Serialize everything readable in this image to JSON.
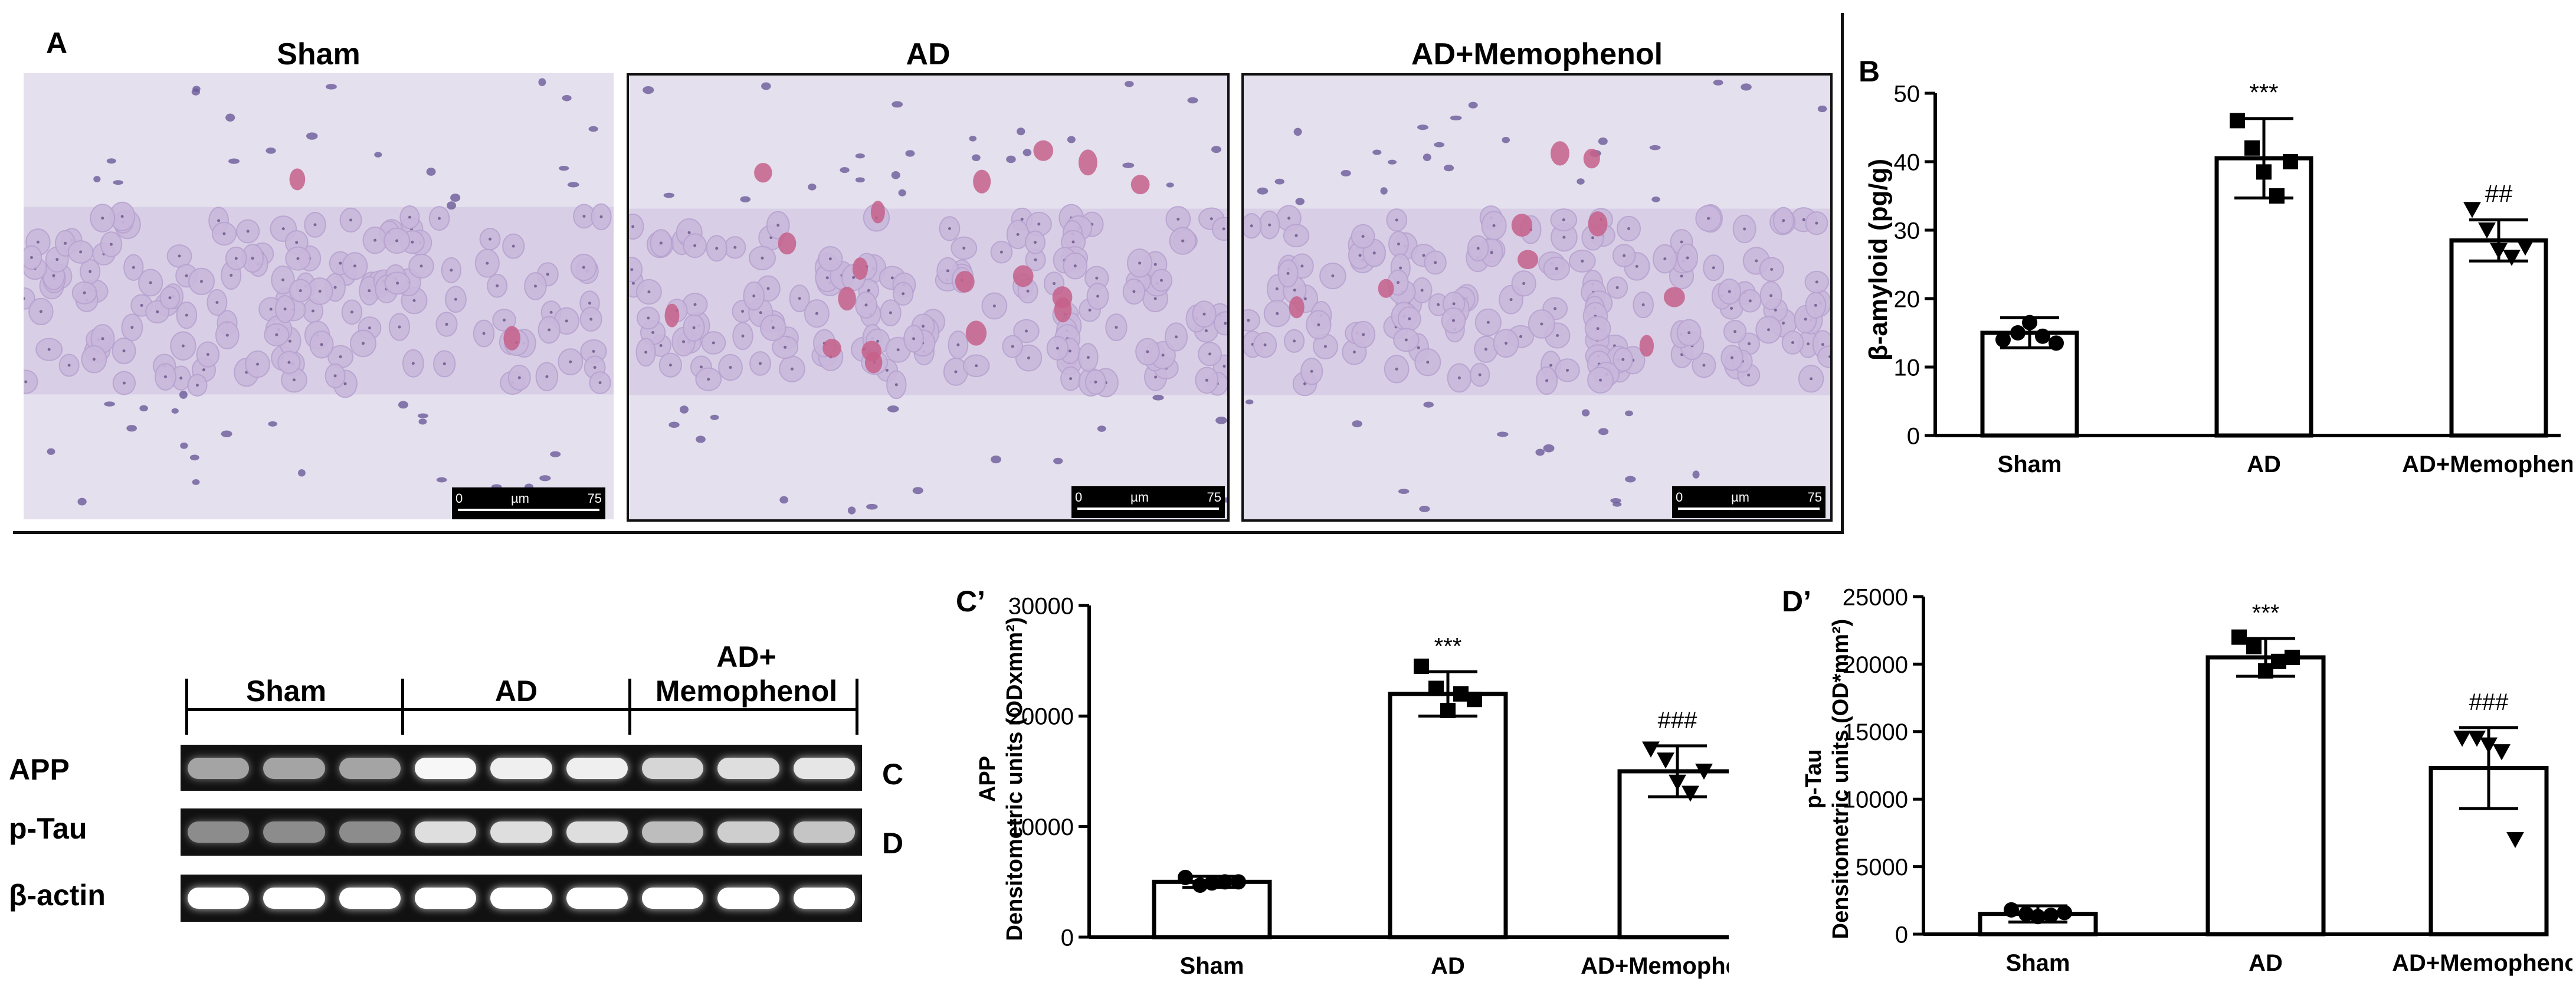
{
  "panel_letters": {
    "a": "A",
    "b": "B",
    "c_prime": "C’",
    "d_prime": "D’",
    "c": "C",
    "d": "D"
  },
  "micrographs": [
    {
      "title": "Sham",
      "scale": {
        "start": "0",
        "unit": "µm",
        "end": "75"
      }
    },
    {
      "title": "AD",
      "scale": {
        "start": "0",
        "unit": "µm",
        "end": "75"
      }
    },
    {
      "title": "AD+Memophenol",
      "scale": {
        "start": "0",
        "unit": "µm",
        "end": "75"
      }
    }
  ],
  "western_blot": {
    "groups": [
      "Sham",
      "AD",
      "AD+\nMemophenol"
    ],
    "group_line1": [
      "Sham",
      "AD",
      "AD+"
    ],
    "group_line2": [
      "",
      "",
      "Memophenol"
    ],
    "rows": [
      "APP",
      "p-Tau",
      "β-actin"
    ],
    "row_refs": [
      "C",
      "D",
      ""
    ]
  },
  "colors": {
    "bar_fill": "#ffffff",
    "bar_stroke": "#000000",
    "points": "#000000"
  },
  "chart_data": [
    {
      "id": "B",
      "type": "bar",
      "categories": [
        "Sham",
        "AD",
        "AD+Memophenol"
      ],
      "values": [
        15,
        40.5,
        28.5
      ],
      "errors": [
        2.2,
        5.8,
        3.0
      ],
      "points": [
        [
          14,
          15,
          16.5,
          14.5,
          13.5
        ],
        [
          46,
          42,
          38.5,
          35,
          40
        ],
        [
          33,
          30,
          27,
          26,
          27.5
        ]
      ],
      "markers": [
        "circle",
        "square",
        "triangle-down"
      ],
      "annotations": [
        "",
        "***",
        "##"
      ],
      "ylabel": "β-amyloid (pg/g)",
      "ylim": [
        0,
        50
      ],
      "yticks": [
        "0",
        "10",
        "20",
        "30",
        "40",
        "50"
      ]
    },
    {
      "id": "C",
      "type": "bar",
      "categories": [
        "Sham",
        "AD",
        "AD+Memophenol"
      ],
      "values": [
        5000,
        22000,
        15000
      ],
      "errors": [
        500,
        2000,
        2300
      ],
      "points": [
        [
          5400,
          4700,
          4900,
          5000,
          5000
        ],
        [
          24500,
          22500,
          20500,
          22000,
          21500
        ],
        [
          17000,
          16000,
          14000,
          13000,
          15000
        ]
      ],
      "markers": [
        "circle",
        "square",
        "triangle-down"
      ],
      "annotations": [
        "",
        "***",
        "###"
      ],
      "ylabel_line1": "APP",
      "ylabel_line2": "Densitometric units (ODxmm²)",
      "ylim": [
        0,
        30000
      ],
      "yticks": [
        "0",
        "10000",
        "20000",
        "30000"
      ]
    },
    {
      "id": "D",
      "type": "bar",
      "categories": [
        "Sham",
        "AD",
        "AD+Memophenol"
      ],
      "values": [
        1500,
        20500,
        12300
      ],
      "errors": [
        600,
        1400,
        3000
      ],
      "points": [
        [
          1800,
          1500,
          1300,
          1400,
          1600
        ],
        [
          22000,
          21300,
          19500,
          20200,
          20500
        ],
        [
          14500,
          14500,
          14000,
          13500,
          7000
        ]
      ],
      "markers": [
        "circle",
        "square",
        "triangle-down"
      ],
      "annotations": [
        "",
        "***",
        "###"
      ],
      "ylabel_line1": "p-Tau",
      "ylabel_line2": "Densitometric units (OD*mm²)",
      "ylim": [
        0,
        25000
      ],
      "yticks": [
        "0",
        "5000",
        "10000",
        "15000",
        "20000",
        "25000"
      ]
    }
  ]
}
